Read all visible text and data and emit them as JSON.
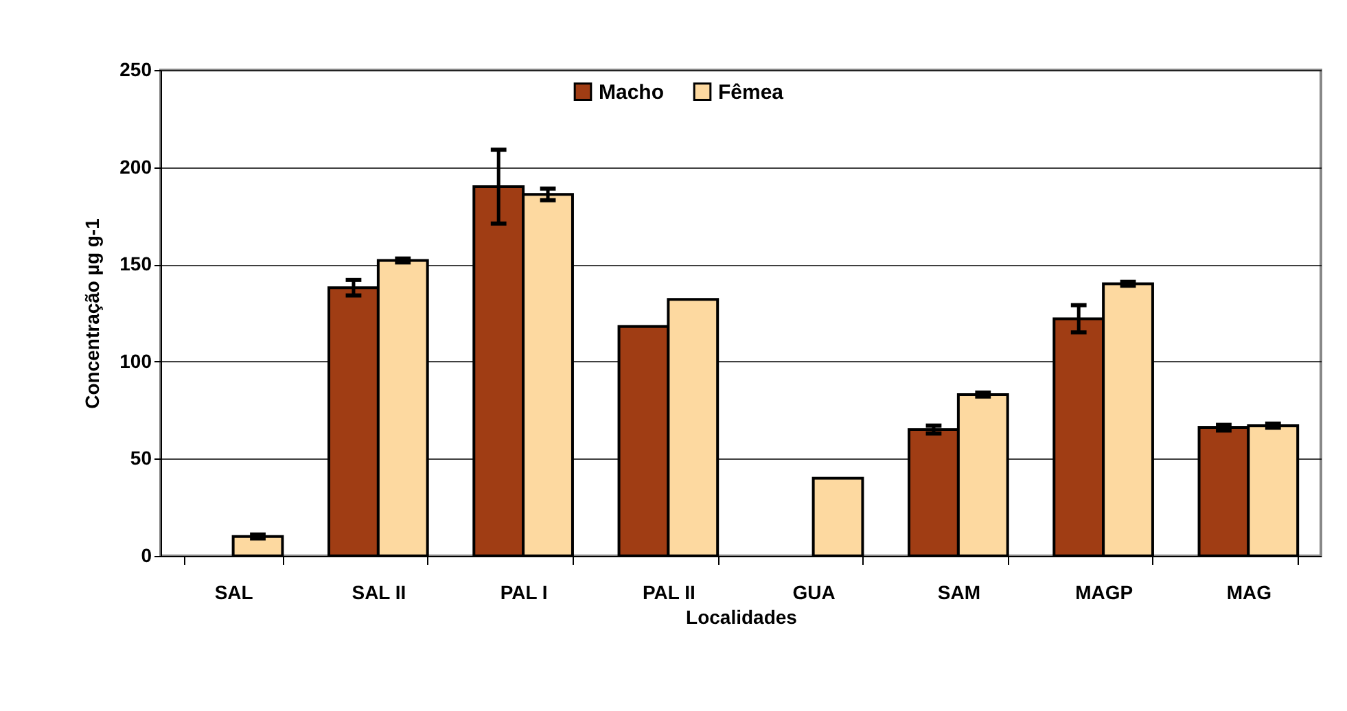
{
  "chart_data": {
    "type": "bar",
    "xlabel": "Localidades",
    "ylabel": "Concentração µg g-1",
    "categories": [
      "SAL",
      "SAL II",
      "PAL I",
      "PAL II",
      "GUA",
      "SAM",
      "MAGP",
      "MAG"
    ],
    "series": [
      {
        "name": "Macho",
        "color": "#a03d14",
        "values": [
          null,
          138,
          190,
          118,
          null,
          65,
          122,
          66
        ],
        "errors": [
          null,
          4,
          19,
          null,
          null,
          2,
          7,
          1.5
        ]
      },
      {
        "name": "Fêmea",
        "color": "#fdd9a0",
        "values": [
          10,
          152,
          186,
          132,
          40,
          83,
          140,
          67
        ],
        "errors": [
          1,
          1,
          3,
          null,
          null,
          1,
          1,
          1
        ]
      }
    ],
    "ylim": [
      0,
      250
    ],
    "yticks": [
      0,
      50,
      100,
      150,
      200,
      250
    ],
    "grid": "y",
    "legend": "top"
  }
}
